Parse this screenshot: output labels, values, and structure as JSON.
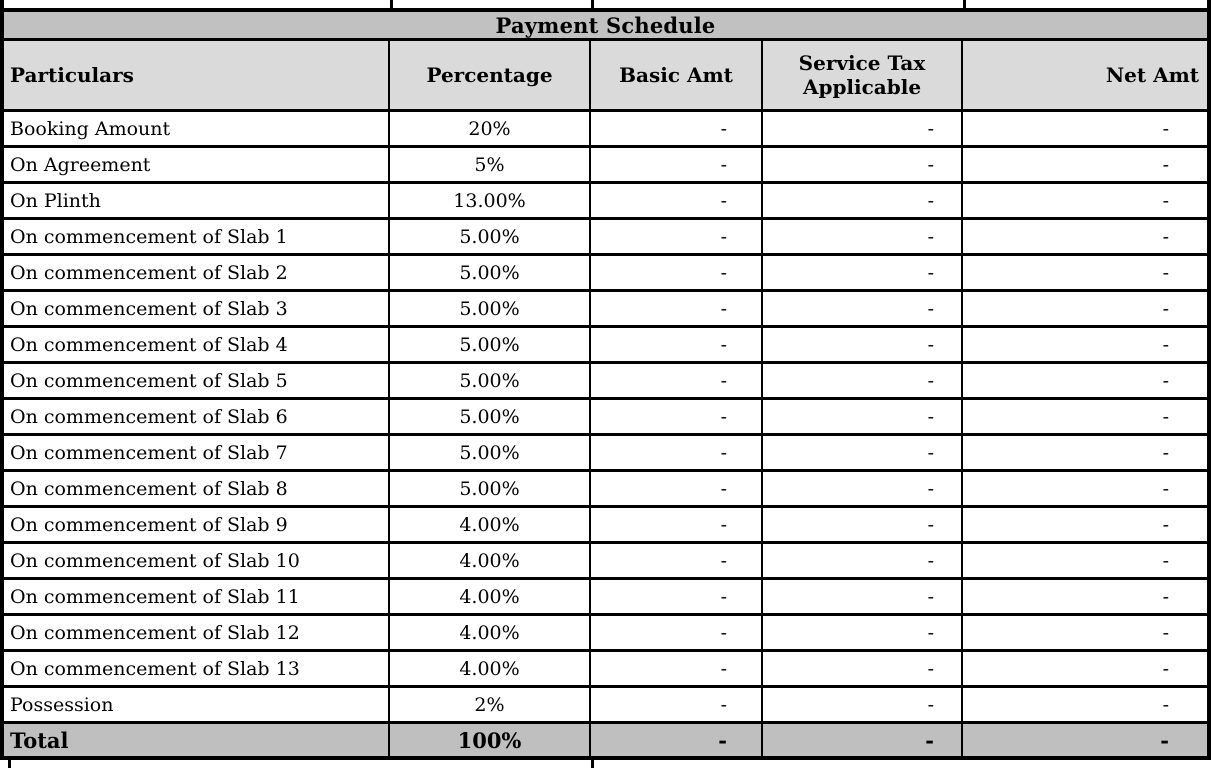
{
  "title": "Payment Schedule",
  "columns": [
    {
      "key": "particulars",
      "label": "Particulars"
    },
    {
      "key": "percentage",
      "label": "Percentage"
    },
    {
      "key": "basic_amt",
      "label": "Basic Amt"
    },
    {
      "key": "service_tax_applicable",
      "label": "Service Tax Applicable"
    },
    {
      "key": "net_amt",
      "label": "Net Amt"
    }
  ],
  "rows": [
    [
      "Booking Amount",
      "20%",
      "-",
      "-",
      "-"
    ],
    [
      "On Agreement",
      "5%",
      "-",
      "-",
      "-"
    ],
    [
      "On Plinth",
      "13.00%",
      "-",
      "-",
      "-"
    ],
    [
      "On commencement of Slab 1",
      "5.00%",
      "-",
      "-",
      "-"
    ],
    [
      "On commencement of Slab 2",
      "5.00%",
      "-",
      "-",
      "-"
    ],
    [
      "On commencement of Slab 3",
      "5.00%",
      "-",
      "-",
      "-"
    ],
    [
      "On commencement of Slab 4",
      "5.00%",
      "-",
      "-",
      "-"
    ],
    [
      "On commencement of Slab 5",
      "5.00%",
      "-",
      "-",
      "-"
    ],
    [
      "On commencement of Slab 6",
      "5.00%",
      "-",
      "-",
      "-"
    ],
    [
      "On commencement of Slab 7",
      "5.00%",
      "-",
      "-",
      "-"
    ],
    [
      "On commencement of Slab 8",
      "5.00%",
      "-",
      "-",
      "-"
    ],
    [
      "On commencement of Slab 9",
      "4.00%",
      "-",
      "-",
      "-"
    ],
    [
      "On commencement of Slab 10",
      "4.00%",
      "-",
      "-",
      "-"
    ],
    [
      "On commencement of Slab 11",
      "4.00%",
      "-",
      "-",
      "-"
    ],
    [
      "On commencement of Slab 12",
      "4.00%",
      "-",
      "-",
      "-"
    ],
    [
      "On commencement of Slab 13",
      "4.00%",
      "-",
      "-",
      "-"
    ],
    [
      "Possession",
      "2%",
      "-",
      "-",
      "-"
    ]
  ],
  "total_row": [
    "Total",
    "100%",
    "-",
    "-",
    "-"
  ],
  "empty_value": "-",
  "colors": {
    "band_bg": "#c1c1c1",
    "header_bg": "#dadada",
    "total_bg": "#bfbfbf",
    "row_bg": "#ffffff",
    "border": "#000000",
    "text": "#000000"
  }
}
